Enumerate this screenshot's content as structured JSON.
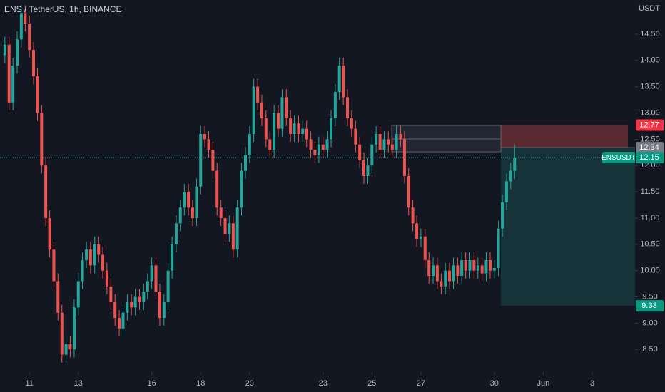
{
  "chart_data": {
    "type": "candlestick",
    "title": "ENS / TetherUS, 1h, BINANCE",
    "unit": "USDT",
    "symbol_label": "ENSUSDT",
    "up_color": "#26a69a",
    "down_color": "#ef5350",
    "xlim": [
      9.8,
      35.75
    ],
    "xticks": [
      11,
      13,
      16,
      18,
      20,
      23,
      25,
      27,
      30,
      {
        "value": 32,
        "label": "Jun"
      },
      {
        "value": 34,
        "label": "3"
      }
    ],
    "ylim": [
      8.07,
      15.15
    ],
    "yticks": [
      {
        "value": 8.5,
        "label": "8.50"
      },
      {
        "value": 9,
        "label": "9.00"
      },
      {
        "value": 9.5,
        "label": "9.50"
      },
      {
        "value": 10,
        "label": "10.00"
      },
      {
        "value": 10.5,
        "label": "10.50"
      },
      {
        "value": 11,
        "label": "11.00"
      },
      {
        "value": 11.5,
        "label": "11.50"
      },
      {
        "value": 12,
        "label": "12.00"
      },
      {
        "value": 12.5,
        "label": "12.50"
      },
      {
        "value": 13,
        "label": "13.00"
      },
      {
        "value": 13.5,
        "label": "13.50"
      },
      {
        "value": 14,
        "label": "14.00"
      },
      {
        "value": 14.5,
        "label": "14.50"
      }
    ],
    "stop_price": 12.77,
    "entry_price": 12.34,
    "target_price": 9.33,
    "last_price": 12.15,
    "candles": [
      [
        10,
        14.1,
        14.45,
        13.95,
        14.3
      ],
      [
        10.17,
        14.3,
        14.45,
        13.05,
        13.2
      ],
      [
        10.33,
        13.2,
        14.05,
        13.05,
        13.9
      ],
      [
        10.5,
        13.9,
        14.55,
        13.75,
        14.4
      ],
      [
        10.67,
        14.4,
        15.05,
        14.25,
        14.9
      ],
      [
        10.83,
        14.9,
        15.05,
        14.55,
        14.7
      ],
      [
        11,
        14.7,
        14.85,
        14.05,
        14.2
      ],
      [
        11.17,
        14.2,
        14.35,
        13.55,
        13.7
      ],
      [
        11.33,
        13.7,
        13.85,
        12.85,
        13.0
      ],
      [
        11.5,
        13.0,
        13.15,
        11.85,
        12.0
      ],
      [
        11.67,
        12.0,
        12.15,
        10.85,
        11.0
      ],
      [
        11.83,
        11.0,
        11.15,
        10.25,
        10.4
      ],
      [
        12,
        10.4,
        10.55,
        9.65,
        9.8
      ],
      [
        12.17,
        9.8,
        9.95,
        9.05,
        9.2
      ],
      [
        12.33,
        9.2,
        9.35,
        8.25,
        8.4
      ],
      [
        12.5,
        8.4,
        8.75,
        8.25,
        8.6
      ],
      [
        12.67,
        8.6,
        8.75,
        8.35,
        8.5
      ],
      [
        12.83,
        8.5,
        9.45,
        8.35,
        9.3
      ],
      [
        13,
        9.3,
        9.95,
        9.15,
        9.8
      ],
      [
        13.17,
        9.8,
        10.35,
        9.65,
        10.2
      ],
      [
        13.33,
        10.2,
        10.55,
        10.05,
        10.4
      ],
      [
        13.5,
        10.4,
        10.55,
        9.95,
        10.1
      ],
      [
        13.67,
        10.1,
        10.65,
        9.95,
        10.5
      ],
      [
        13.83,
        10.5,
        10.65,
        10.15,
        10.3
      ],
      [
        14,
        10.3,
        10.45,
        9.85,
        10.0
      ],
      [
        14.17,
        10.0,
        10.15,
        9.55,
        9.7
      ],
      [
        14.33,
        9.7,
        9.85,
        9.25,
        9.4
      ],
      [
        14.5,
        9.4,
        9.55,
        8.95,
        9.1
      ],
      [
        14.67,
        9.1,
        9.25,
        8.75,
        8.9
      ],
      [
        14.83,
        8.9,
        9.35,
        8.75,
        9.2
      ],
      [
        15,
        9.2,
        9.55,
        9.05,
        9.4
      ],
      [
        15.17,
        9.4,
        9.55,
        9.15,
        9.3
      ],
      [
        15.33,
        9.3,
        9.65,
        9.15,
        9.5
      ],
      [
        15.5,
        9.5,
        9.65,
        9.25,
        9.4
      ],
      [
        15.67,
        9.4,
        9.75,
        9.25,
        9.6
      ],
      [
        15.83,
        9.6,
        9.95,
        9.45,
        9.8
      ],
      [
        16,
        9.8,
        10.25,
        9.65,
        10.1
      ],
      [
        16.17,
        10.1,
        10.25,
        9.45,
        9.6
      ],
      [
        16.33,
        9.6,
        9.75,
        8.95,
        9.1
      ],
      [
        16.5,
        9.1,
        9.55,
        8.95,
        9.4
      ],
      [
        16.67,
        9.4,
        10.15,
        9.25,
        10.0
      ],
      [
        16.83,
        10.0,
        10.65,
        9.85,
        10.5
      ],
      [
        17,
        10.5,
        11.05,
        10.35,
        10.9
      ],
      [
        17.17,
        10.9,
        11.35,
        10.75,
        11.2
      ],
      [
        17.33,
        11.2,
        11.65,
        11.05,
        11.5
      ],
      [
        17.5,
        11.5,
        11.65,
        11.05,
        11.2
      ],
      [
        17.67,
        11.2,
        11.35,
        10.85,
        11.0
      ],
      [
        17.83,
        11.0,
        11.75,
        10.85,
        11.6
      ],
      [
        18,
        11.6,
        12.75,
        11.45,
        12.6
      ],
      [
        18.17,
        12.6,
        12.75,
        12.35,
        12.5
      ],
      [
        18.33,
        12.5,
        12.65,
        12.15,
        12.3
      ],
      [
        18.5,
        12.3,
        12.45,
        11.75,
        11.9
      ],
      [
        18.67,
        11.9,
        12.05,
        11.05,
        11.2
      ],
      [
        18.83,
        11.2,
        11.35,
        10.85,
        11.0
      ],
      [
        19,
        11.0,
        11.15,
        10.55,
        10.7
      ],
      [
        19.17,
        10.7,
        11.05,
        10.55,
        10.9
      ],
      [
        19.33,
        10.9,
        11.05,
        10.25,
        10.4
      ],
      [
        19.5,
        10.4,
        11.35,
        10.25,
        11.2
      ],
      [
        19.67,
        11.2,
        12.05,
        11.05,
        11.9
      ],
      [
        19.83,
        11.9,
        12.35,
        11.75,
        12.2
      ],
      [
        20,
        12.2,
        12.75,
        12.05,
        12.6
      ],
      [
        20.17,
        12.6,
        13.65,
        12.45,
        13.5
      ],
      [
        20.33,
        13.5,
        13.65,
        13.05,
        13.2
      ],
      [
        20.5,
        13.2,
        13.35,
        12.75,
        12.9
      ],
      [
        20.67,
        12.9,
        13.05,
        12.35,
        12.5
      ],
      [
        20.83,
        12.5,
        12.65,
        12.15,
        12.3
      ],
      [
        21,
        12.3,
        13.15,
        12.15,
        13.0
      ],
      [
        21.17,
        13.0,
        13.15,
        12.55,
        12.7
      ],
      [
        21.33,
        12.7,
        13.45,
        12.55,
        13.3
      ],
      [
        21.5,
        13.3,
        13.45,
        12.75,
        12.9
      ],
      [
        21.67,
        12.9,
        13.05,
        12.45,
        12.6
      ],
      [
        21.83,
        12.6,
        12.95,
        12.45,
        12.8
      ],
      [
        22,
        12.8,
        12.95,
        12.45,
        12.6
      ],
      [
        22.17,
        12.6,
        12.85,
        12.45,
        12.7
      ],
      [
        22.33,
        12.7,
        12.85,
        12.35,
        12.5
      ],
      [
        22.5,
        12.5,
        12.65,
        12.15,
        12.3
      ],
      [
        22.67,
        12.3,
        12.45,
        12.05,
        12.2
      ],
      [
        22.83,
        12.2,
        12.55,
        12.05,
        12.4
      ],
      [
        23,
        12.4,
        12.55,
        12.15,
        12.3
      ],
      [
        23.17,
        12.3,
        12.65,
        12.15,
        12.5
      ],
      [
        23.33,
        12.5,
        13.05,
        12.35,
        12.9
      ],
      [
        23.5,
        12.9,
        13.55,
        12.75,
        13.4
      ],
      [
        23.67,
        13.4,
        14.05,
        13.25,
        13.9
      ],
      [
        23.83,
        13.9,
        14.05,
        13.15,
        13.3
      ],
      [
        24,
        13.3,
        13.45,
        12.75,
        12.9
      ],
      [
        24.17,
        12.9,
        13.05,
        12.55,
        12.7
      ],
      [
        24.33,
        12.7,
        12.85,
        12.25,
        12.4
      ],
      [
        24.5,
        12.4,
        12.55,
        11.95,
        12.1
      ],
      [
        24.67,
        12.1,
        12.25,
        11.65,
        11.8
      ],
      [
        24.83,
        11.8,
        12.15,
        11.65,
        12.0
      ],
      [
        25,
        12.0,
        12.55,
        11.85,
        12.4
      ],
      [
        25.17,
        12.4,
        12.75,
        12.25,
        12.6
      ],
      [
        25.33,
        12.6,
        12.75,
        12.15,
        12.3
      ],
      [
        25.5,
        12.3,
        12.65,
        12.15,
        12.5
      ],
      [
        25.67,
        12.5,
        12.65,
        12.25,
        12.4
      ],
      [
        25.83,
        12.4,
        12.55,
        12.15,
        12.3
      ],
      [
        26,
        12.3,
        12.75,
        12.15,
        12.6
      ],
      [
        26.17,
        12.6,
        12.75,
        12.35,
        12.5
      ],
      [
        26.33,
        12.5,
        12.65,
        11.65,
        11.8
      ],
      [
        26.5,
        11.8,
        11.95,
        11.05,
        11.2
      ],
      [
        26.67,
        11.2,
        11.35,
        10.75,
        10.9
      ],
      [
        26.83,
        10.9,
        11.05,
        10.45,
        10.6
      ],
      [
        27,
        10.6,
        10.8,
        10.45,
        10.65
      ],
      [
        27.17,
        10.65,
        10.8,
        10.05,
        10.2
      ],
      [
        27.33,
        10.2,
        10.35,
        9.75,
        9.9
      ],
      [
        27.5,
        9.9,
        10.25,
        9.75,
        10.1
      ],
      [
        27.67,
        10.1,
        10.25,
        9.65,
        9.8
      ],
      [
        27.83,
        9.8,
        9.95,
        9.55,
        9.7
      ],
      [
        28,
        9.7,
        10.15,
        9.55,
        10.0
      ],
      [
        28.17,
        10.0,
        10.15,
        9.65,
        9.8
      ],
      [
        28.33,
        9.8,
        10.25,
        9.65,
        10.1
      ],
      [
        28.5,
        10.1,
        10.25,
        9.75,
        9.9
      ],
      [
        28.67,
        9.9,
        10.35,
        9.75,
        10.2
      ],
      [
        28.83,
        10.2,
        10.35,
        9.85,
        10.0
      ],
      [
        29,
        10.0,
        10.35,
        9.85,
        10.2
      ],
      [
        29.17,
        10.2,
        10.35,
        9.85,
        10.0
      ],
      [
        29.33,
        10.0,
        10.25,
        9.85,
        10.1
      ],
      [
        29.5,
        10.1,
        10.25,
        9.8,
        9.95
      ],
      [
        29.67,
        9.95,
        10.35,
        9.8,
        10.2
      ],
      [
        29.83,
        10.2,
        10.35,
        9.85,
        10.0
      ],
      [
        30,
        10.0,
        10.2,
        9.85,
        10.05
      ],
      [
        30.17,
        10.05,
        10.95,
        9.9,
        10.8
      ],
      [
        30.33,
        10.8,
        11.45,
        10.65,
        11.3
      ],
      [
        30.5,
        11.3,
        11.85,
        11.15,
        11.7
      ],
      [
        30.67,
        11.7,
        12.05,
        11.55,
        11.9
      ],
      [
        30.83,
        11.9,
        12.4,
        11.75,
        12.15
      ]
    ]
  }
}
